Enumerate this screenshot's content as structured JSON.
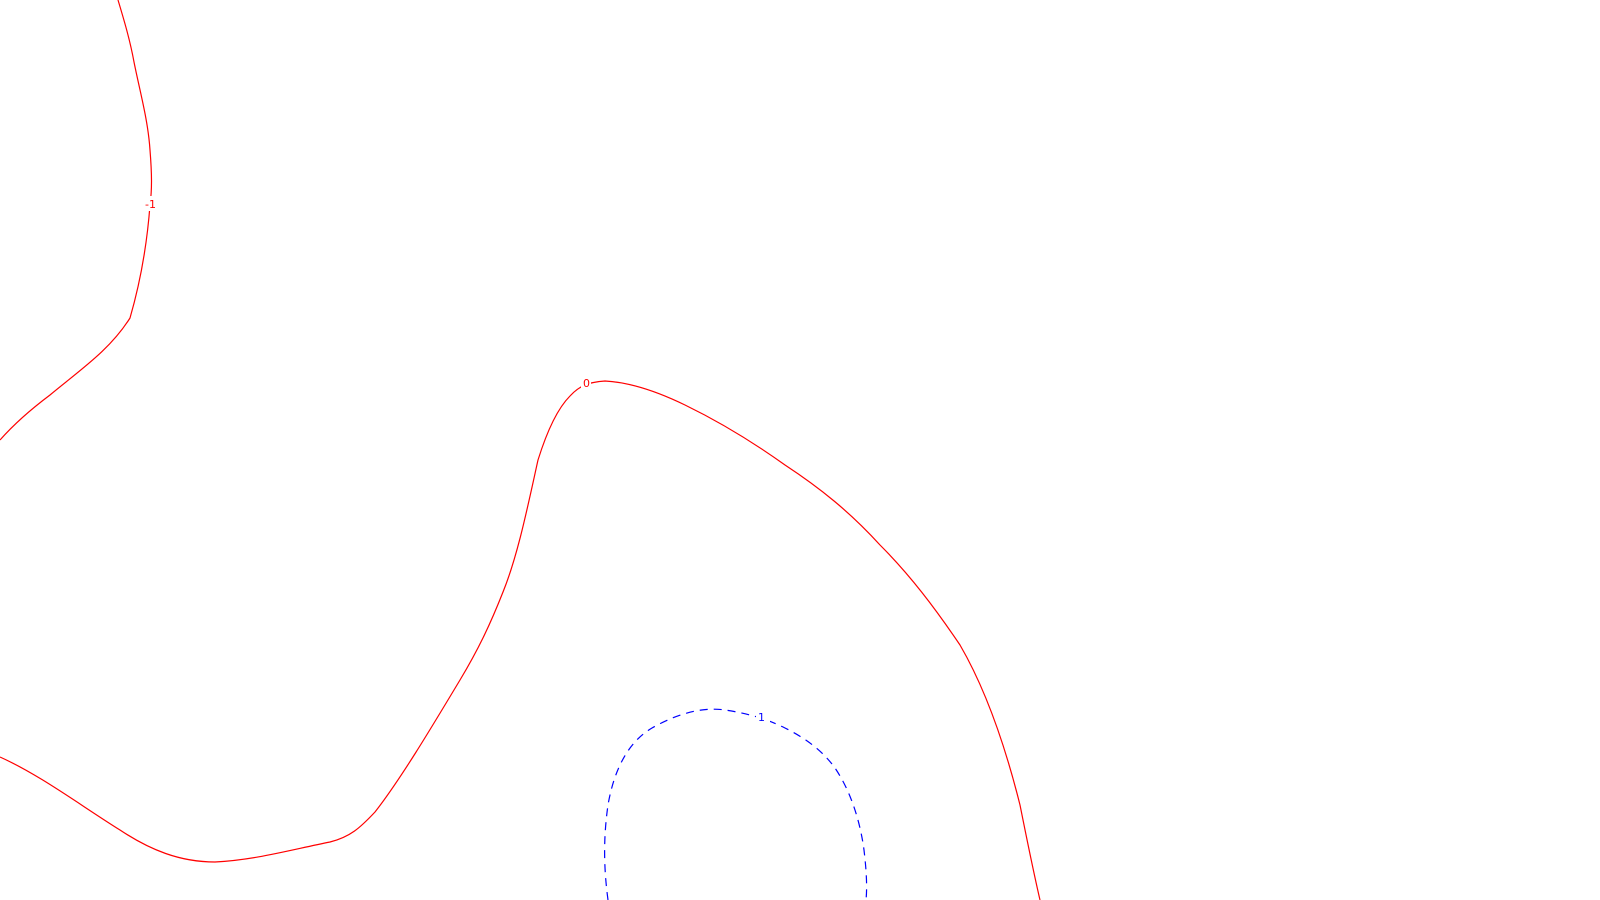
{
  "chart_data": {
    "type": "contour",
    "grid": false,
    "colors": {
      "level_-1_solid": "#ff0000",
      "level_0": "#ff0000",
      "level_1": "#0000ff"
    },
    "series": [
      {
        "level": "-1",
        "label": "-1",
        "line_style": "solid",
        "color": "#ff0000"
      },
      {
        "level": "0",
        "label": "0",
        "line_style": "solid",
        "color": "#ff0000"
      },
      {
        "level": "1",
        "label": "1",
        "line_style": "dashed",
        "color": "#0000ff"
      }
    ]
  }
}
